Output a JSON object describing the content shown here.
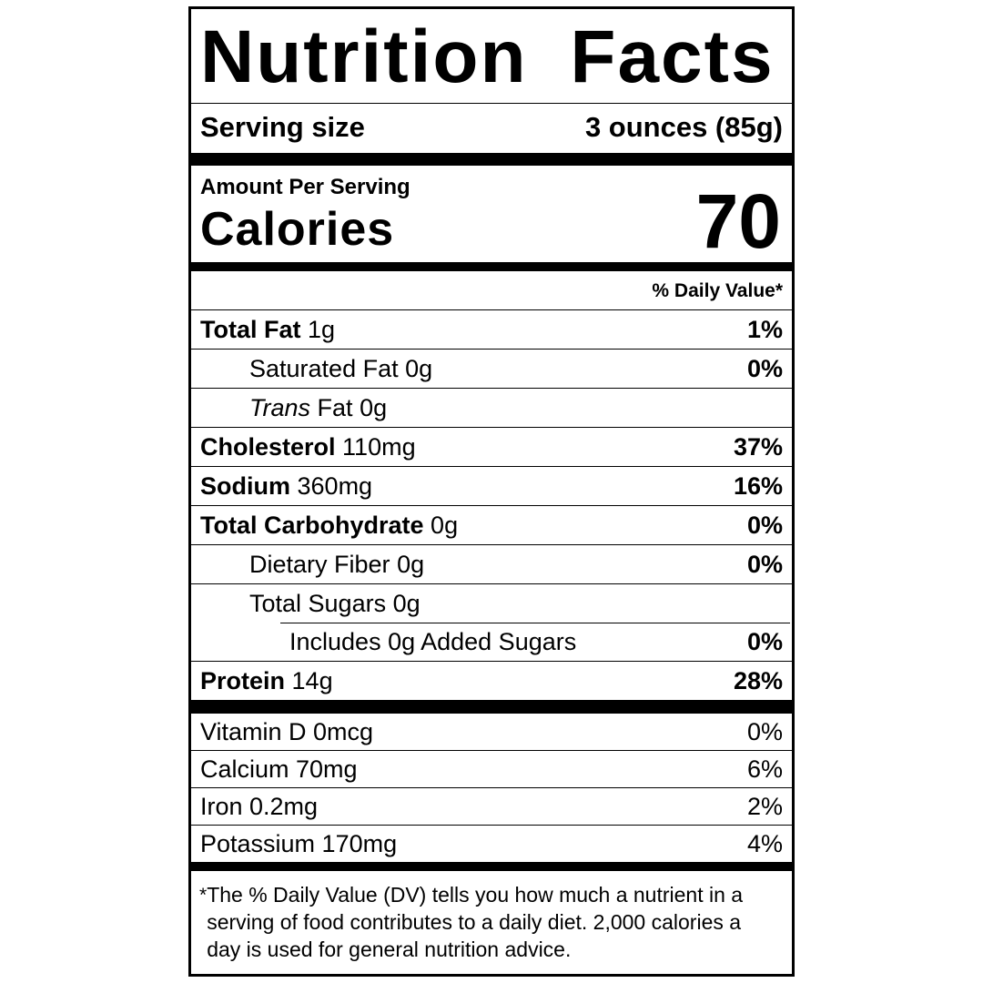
{
  "label": {
    "title": "Nutrition Facts",
    "serving_size_label": "Serving size",
    "serving_size_value": "3 ounces (85g)",
    "amount_per_serving": "Amount Per Serving",
    "calories_label": "Calories",
    "calories_value": "70",
    "daily_value_header": "% Daily Value*",
    "nutrients": [
      {
        "name": "Total Fat",
        "amount": "1g",
        "percent": "1%"
      },
      {
        "name": "Saturated Fat",
        "amount": "0g",
        "percent": "0%"
      },
      {
        "name_italic": "Trans",
        "name": "Fat",
        "amount": "0g",
        "percent": ""
      },
      {
        "name": "Cholesterol",
        "amount": "110mg",
        "percent": "37%"
      },
      {
        "name": "Sodium",
        "amount": "360mg",
        "percent": "16%"
      },
      {
        "name": "Total Carbohydrate",
        "amount": "0g",
        "percent": "0%"
      },
      {
        "name": "Dietary Fiber",
        "amount": "0g",
        "percent": "0%"
      },
      {
        "name": "Total Sugars",
        "amount": "0g",
        "percent": ""
      },
      {
        "name": "Includes 0g Added Sugars",
        "amount": "",
        "percent": "0%"
      },
      {
        "name": "Protein",
        "amount": "14g",
        "percent": "28%"
      }
    ],
    "vitamins": [
      {
        "text": "Vitamin D 0mcg",
        "percent": "0%"
      },
      {
        "text": "Calcium 70mg",
        "percent": "6%"
      },
      {
        "text": "Iron 0.2mg",
        "percent": "2%"
      },
      {
        "text": "Potassium 170mg",
        "percent": "4%"
      }
    ],
    "footnote_marker": "*",
    "footnote_text": "The % Daily Value (DV) tells you how much a nutrient in a serving of food contributes to a daily diet. 2,000 calories a day is used for general nutrition advice."
  }
}
